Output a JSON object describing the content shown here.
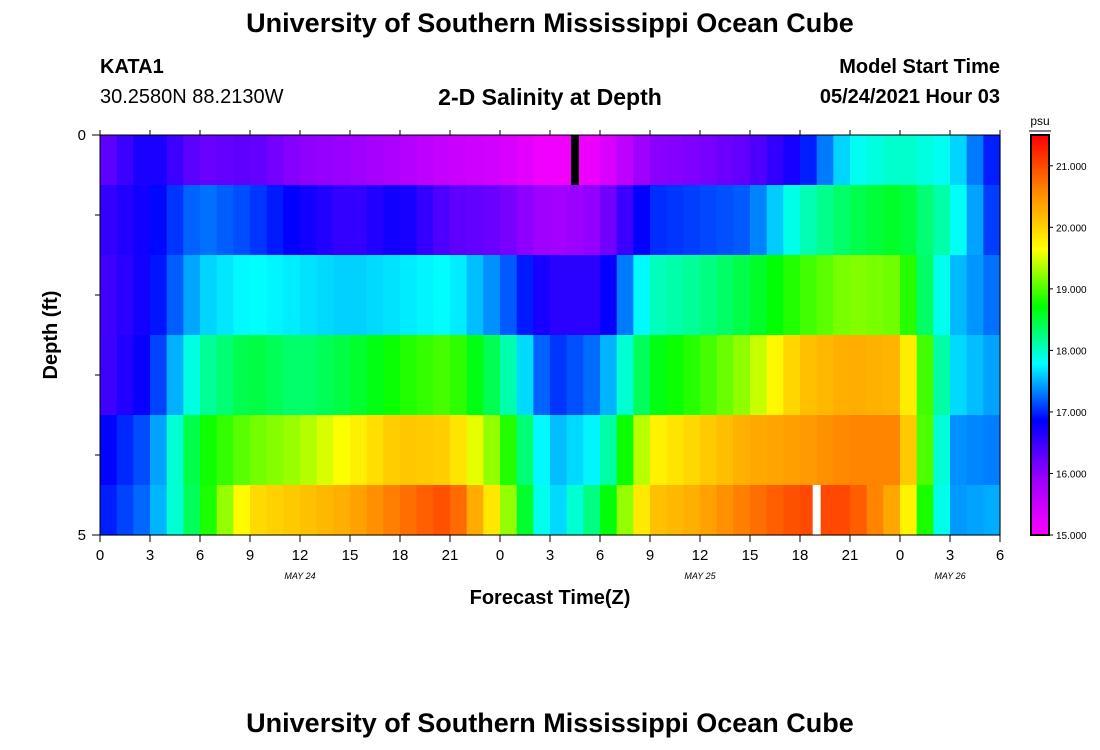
{
  "page": {
    "title_top": "University of Southern Mississippi Ocean Cube",
    "title_bottom": "University of Southern Mississippi Ocean Cube",
    "station_id": "KATA1",
    "station_coords": "30.2580N  88.2130W",
    "model_start_label": "Model Start Time",
    "model_start_value": "05/24/2021 Hour 03"
  },
  "chart_data": {
    "type": "heatmap",
    "title": "2-D Salinity at Depth",
    "xlabel": "Forecast Time(Z)",
    "ylabel": "Depth (ft)",
    "x_tick_labels": [
      "0",
      "3",
      "6",
      "9",
      "12",
      "15",
      "18",
      "21",
      "0",
      "3",
      "6",
      "9",
      "12",
      "15",
      "18",
      "21",
      "0",
      "3",
      "6"
    ],
    "x_range_hours": [
      0,
      54
    ],
    "x_day_labels": [
      {
        "label": "MAY 24",
        "hour": 12
      },
      {
        "label": "MAY 25",
        "hour": 36
      },
      {
        "label": "MAY 26",
        "hour": 51
      }
    ],
    "y_range": [
      0,
      5
    ],
    "y_tick_labels": [
      "0",
      "5"
    ],
    "colorbar": {
      "unit": "psu",
      "min": 15.0,
      "max": 21.5,
      "tick_labels": [
        "15.000",
        "16.000",
        "17.000",
        "18.000",
        "19.000",
        "20.000",
        "21.000"
      ],
      "tick_values": [
        15,
        16,
        17,
        18,
        19,
        20,
        21
      ],
      "colors": [
        "#ff00ff",
        "#9900ff",
        "#0000ff",
        "#00ffff",
        "#00ff00",
        "#ffff00",
        "#ff8800",
        "#ff0000"
      ]
    },
    "layer_depths_ft": [
      0.25,
      1,
      2,
      3,
      4,
      4.75
    ],
    "time_hours": [
      0,
      3,
      6,
      9,
      12,
      15,
      18,
      21,
      24,
      27,
      30,
      33,
      36,
      39,
      42,
      45,
      48,
      51,
      54
    ],
    "salinity": [
      [
        16.2,
        16.8,
        16.2,
        16.3,
        16.0,
        15.9,
        15.7,
        15.5,
        15.4,
        15.1,
        15.2,
        16.0,
        16.1,
        16.3,
        16.8,
        17.8,
        18.0,
        17.8,
        16.8
      ],
      [
        16.5,
        16.8,
        17.3,
        17.1,
        16.8,
        16.5,
        16.8,
        16.3,
        16.2,
        15.8,
        16.0,
        17.0,
        17.1,
        17.2,
        18.0,
        18.4,
        18.6,
        18.0,
        16.9
      ],
      [
        16.4,
        16.8,
        17.6,
        17.8,
        17.7,
        17.6,
        17.7,
        17.8,
        17.3,
        16.6,
        16.6,
        18.0,
        18.2,
        18.5,
        18.9,
        19.2,
        19.1,
        17.6,
        17.2
      ],
      [
        16.4,
        16.9,
        18.1,
        18.5,
        18.3,
        18.5,
        18.8,
        19.0,
        18.3,
        17.0,
        17.3,
        18.6,
        18.9,
        19.3,
        20.1,
        20.3,
        20.2,
        17.7,
        17.4
      ],
      [
        16.8,
        17.2,
        18.7,
        19.1,
        19.3,
        19.7,
        20.1,
        20.0,
        19.1,
        17.5,
        17.8,
        19.7,
        20.0,
        20.3,
        20.4,
        20.6,
        20.6,
        17.4,
        17.3
      ],
      [
        16.9,
        17.3,
        18.6,
        19.9,
        20.1,
        20.3,
        20.7,
        21.0,
        19.6,
        17.5,
        18.4,
        20.1,
        20.3,
        20.7,
        21.0,
        21.0,
        20.2,
        17.4,
        17.5
      ]
    ],
    "markers": [
      {
        "color": "#000000",
        "hour": 28.5,
        "layer": 0
      },
      {
        "color": "#ffffff",
        "hour": 43.0,
        "layer": 5
      }
    ]
  }
}
